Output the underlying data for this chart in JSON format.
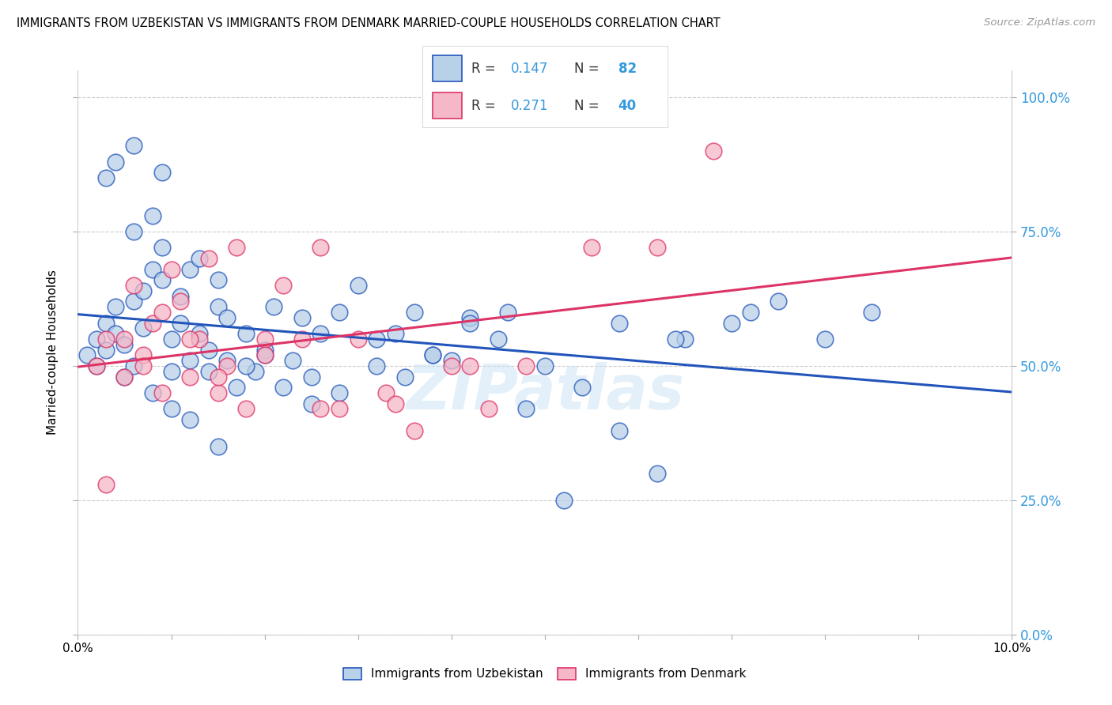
{
  "title": "IMMIGRANTS FROM UZBEKISTAN VS IMMIGRANTS FROM DENMARK MARRIED-COUPLE HOUSEHOLDS CORRELATION CHART",
  "source": "Source: ZipAtlas.com",
  "ylabel": "Married-couple Households",
  "legend_labels": [
    "Immigrants from Uzbekistan",
    "Immigrants from Denmark"
  ],
  "r_uzbekistan": 0.147,
  "n_uzbekistan": 82,
  "r_denmark": 0.271,
  "n_denmark": 40,
  "color_uzbekistan": "#b8d0e8",
  "color_denmark": "#f5b8c8",
  "line_color_uzbekistan": "#2255bb",
  "line_color_denmark": "#dd3366",
  "watermark": "ZIPatlas",
  "x_min": 0.0,
  "x_max": 0.1,
  "y_min": 0.0,
  "y_max": 1.05,
  "uzbekistan_x": [
    0.001,
    0.002,
    0.002,
    0.003,
    0.003,
    0.004,
    0.004,
    0.005,
    0.005,
    0.006,
    0.006,
    0.007,
    0.007,
    0.008,
    0.008,
    0.009,
    0.009,
    0.01,
    0.01,
    0.011,
    0.011,
    0.012,
    0.012,
    0.013,
    0.013,
    0.014,
    0.014,
    0.015,
    0.015,
    0.016,
    0.016,
    0.017,
    0.018,
    0.019,
    0.02,
    0.021,
    0.022,
    0.023,
    0.024,
    0.025,
    0.026,
    0.028,
    0.03,
    0.032,
    0.034,
    0.036,
    0.038,
    0.04,
    0.042,
    0.045,
    0.048,
    0.05,
    0.054,
    0.058,
    0.062,
    0.065,
    0.07,
    0.075,
    0.08,
    0.085,
    0.003,
    0.004,
    0.006,
    0.008,
    0.01,
    0.012,
    0.015,
    0.018,
    0.02,
    0.025,
    0.028,
    0.032,
    0.035,
    0.038,
    0.042,
    0.046,
    0.052,
    0.058,
    0.064,
    0.072,
    0.006,
    0.009
  ],
  "uzbekistan_y": [
    0.52,
    0.5,
    0.55,
    0.53,
    0.58,
    0.56,
    0.61,
    0.48,
    0.54,
    0.5,
    0.62,
    0.57,
    0.64,
    0.45,
    0.68,
    0.66,
    0.72,
    0.49,
    0.55,
    0.58,
    0.63,
    0.51,
    0.68,
    0.7,
    0.56,
    0.49,
    0.53,
    0.61,
    0.66,
    0.59,
    0.51,
    0.46,
    0.56,
    0.49,
    0.53,
    0.61,
    0.46,
    0.51,
    0.59,
    0.43,
    0.56,
    0.6,
    0.65,
    0.55,
    0.56,
    0.6,
    0.52,
    0.51,
    0.59,
    0.55,
    0.42,
    0.5,
    0.46,
    0.38,
    0.3,
    0.55,
    0.58,
    0.62,
    0.55,
    0.6,
    0.85,
    0.88,
    0.75,
    0.78,
    0.42,
    0.4,
    0.35,
    0.5,
    0.52,
    0.48,
    0.45,
    0.5,
    0.48,
    0.52,
    0.58,
    0.6,
    0.25,
    0.58,
    0.55,
    0.6,
    0.91,
    0.86
  ],
  "denmark_x": [
    0.002,
    0.003,
    0.005,
    0.006,
    0.007,
    0.008,
    0.009,
    0.01,
    0.011,
    0.012,
    0.013,
    0.014,
    0.015,
    0.016,
    0.017,
    0.018,
    0.02,
    0.022,
    0.024,
    0.026,
    0.028,
    0.03,
    0.033,
    0.036,
    0.04,
    0.044,
    0.048,
    0.055,
    0.062,
    0.068,
    0.003,
    0.005,
    0.007,
    0.009,
    0.012,
    0.015,
    0.02,
    0.026,
    0.034,
    0.042
  ],
  "denmark_y": [
    0.5,
    0.55,
    0.48,
    0.65,
    0.52,
    0.58,
    0.6,
    0.68,
    0.62,
    0.48,
    0.55,
    0.7,
    0.45,
    0.5,
    0.72,
    0.42,
    0.55,
    0.65,
    0.55,
    0.72,
    0.42,
    0.55,
    0.45,
    0.38,
    0.5,
    0.42,
    0.5,
    0.72,
    0.72,
    0.9,
    0.28,
    0.55,
    0.5,
    0.45,
    0.55,
    0.48,
    0.52,
    0.42,
    0.43,
    0.5
  ]
}
